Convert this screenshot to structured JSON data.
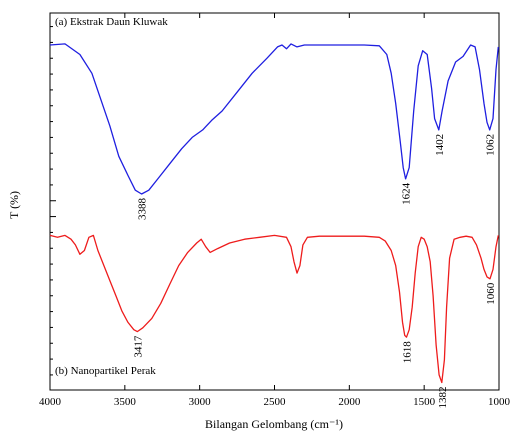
{
  "chart_data": {
    "type": "line",
    "xlabel": "Bilangan Gelombang (cm⁻¹)",
    "ylabel": "T (%)",
    "xlim": [
      4000,
      1000
    ],
    "x_reversed": true,
    "x_ticks": [
      4000,
      3500,
      3000,
      2500,
      2000,
      1500,
      1000
    ],
    "x_tick_labels": [
      "4000",
      "3500",
      "3000",
      "2500",
      "2000",
      "1500",
      "1000"
    ],
    "ylim": [
      0,
      100
    ],
    "y_ticks_labeled": false,
    "series": [
      {
        "name": "(a) Ekstrak Daun Kluwak",
        "color": "#1f1fe0",
        "x": [
          4000,
          3900,
          3800,
          3720,
          3660,
          3600,
          3540,
          3480,
          3430,
          3388,
          3340,
          3280,
          3200,
          3120,
          3050,
          2980,
          2920,
          2850,
          2750,
          2650,
          2550,
          2480,
          2450,
          2420,
          2390,
          2350,
          2300,
          2200,
          2100,
          1900,
          1800,
          1750,
          1720,
          1690,
          1660,
          1640,
          1624,
          1600,
          1570,
          1540,
          1510,
          1480,
          1450,
          1430,
          1402,
          1380,
          1340,
          1290,
          1240,
          1190,
          1160,
          1130,
          1100,
          1080,
          1062,
          1040,
          1020,
          1005
        ],
        "y": [
          91.5,
          91.8,
          89.0,
          84.0,
          77.0,
          70.0,
          62.0,
          57.0,
          53.0,
          52.0,
          53.0,
          56.0,
          60.0,
          64.0,
          67.0,
          69.0,
          71.5,
          74.0,
          79.0,
          84.0,
          88.0,
          91.0,
          91.5,
          90.5,
          91.8,
          91.0,
          91.5,
          91.5,
          91.5,
          91.5,
          91.3,
          89.0,
          84.0,
          76.0,
          66.0,
          59.0,
          56.0,
          59.0,
          74.0,
          86.0,
          90.0,
          89.0,
          80.0,
          72.0,
          69.0,
          74.0,
          82.0,
          87.0,
          88.5,
          91.5,
          91.0,
          85.0,
          76.0,
          71.0,
          69.0,
          72.0,
          85.0,
          91.0
        ]
      },
      {
        "name": "(b) Nanopartikel Perak",
        "color": "#ee1c1c",
        "x": [
          4000,
          3950,
          3900,
          3860,
          3830,
          3800,
          3770,
          3740,
          3710,
          3680,
          3640,
          3600,
          3560,
          3520,
          3480,
          3440,
          3417,
          3380,
          3320,
          3260,
          3200,
          3140,
          3080,
          3020,
          2990,
          2960,
          2930,
          2880,
          2800,
          2700,
          2600,
          2500,
          2420,
          2390,
          2370,
          2350,
          2330,
          2310,
          2280,
          2200,
          2050,
          1900,
          1800,
          1760,
          1720,
          1690,
          1665,
          1645,
          1630,
          1618,
          1600,
          1580,
          1560,
          1540,
          1520,
          1500,
          1480,
          1460,
          1440,
          1420,
          1400,
          1382,
          1365,
          1350,
          1330,
          1300,
          1260,
          1220,
          1180,
          1150,
          1120,
          1100,
          1080,
          1060,
          1040,
          1020,
          1005
        ],
        "y": [
          41.0,
          40.5,
          41.0,
          40.0,
          38.5,
          36.0,
          37.0,
          40.5,
          41.0,
          37.0,
          33.0,
          29.0,
          25.0,
          21.0,
          18.0,
          16.0,
          15.5,
          16.5,
          19.0,
          23.0,
          28.0,
          33.0,
          36.5,
          39.0,
          40.0,
          38.0,
          36.5,
          37.5,
          39.0,
          40.0,
          40.5,
          41.0,
          40.5,
          38.0,
          34.0,
          31.0,
          33.0,
          38.5,
          40.5,
          40.8,
          40.8,
          40.8,
          40.5,
          39.5,
          37.0,
          33.0,
          26.0,
          18.0,
          14.5,
          14.0,
          16.0,
          22.0,
          31.0,
          38.0,
          40.5,
          40.0,
          38.0,
          34.0,
          25.0,
          12.0,
          4.0,
          2.0,
          8.0,
          22.0,
          35.0,
          40.0,
          40.5,
          40.8,
          40.5,
          38.5,
          35.0,
          32.0,
          30.0,
          29.5,
          32.0,
          38.0,
          41.0
        ]
      }
    ],
    "annotations": [
      {
        "text": "3388",
        "series": 0,
        "x": 3388
      },
      {
        "text": "1624",
        "series": 0,
        "x": 1624
      },
      {
        "text": "1402",
        "series": 0,
        "x": 1402
      },
      {
        "text": "1062",
        "series": 0,
        "x": 1062
      },
      {
        "text": "3417",
        "series": 1,
        "x": 3417
      },
      {
        "text": "1618",
        "series": 1,
        "x": 1618
      },
      {
        "text": "1382",
        "series": 1,
        "x": 1382
      },
      {
        "text": "1060",
        "series": 1,
        "x": 1060
      }
    ],
    "panel_labels": [
      "(a) Ekstrak Daun Kluwak",
      "(b) Nanopartikel Perak"
    ],
    "grid": false,
    "legend": "none"
  }
}
